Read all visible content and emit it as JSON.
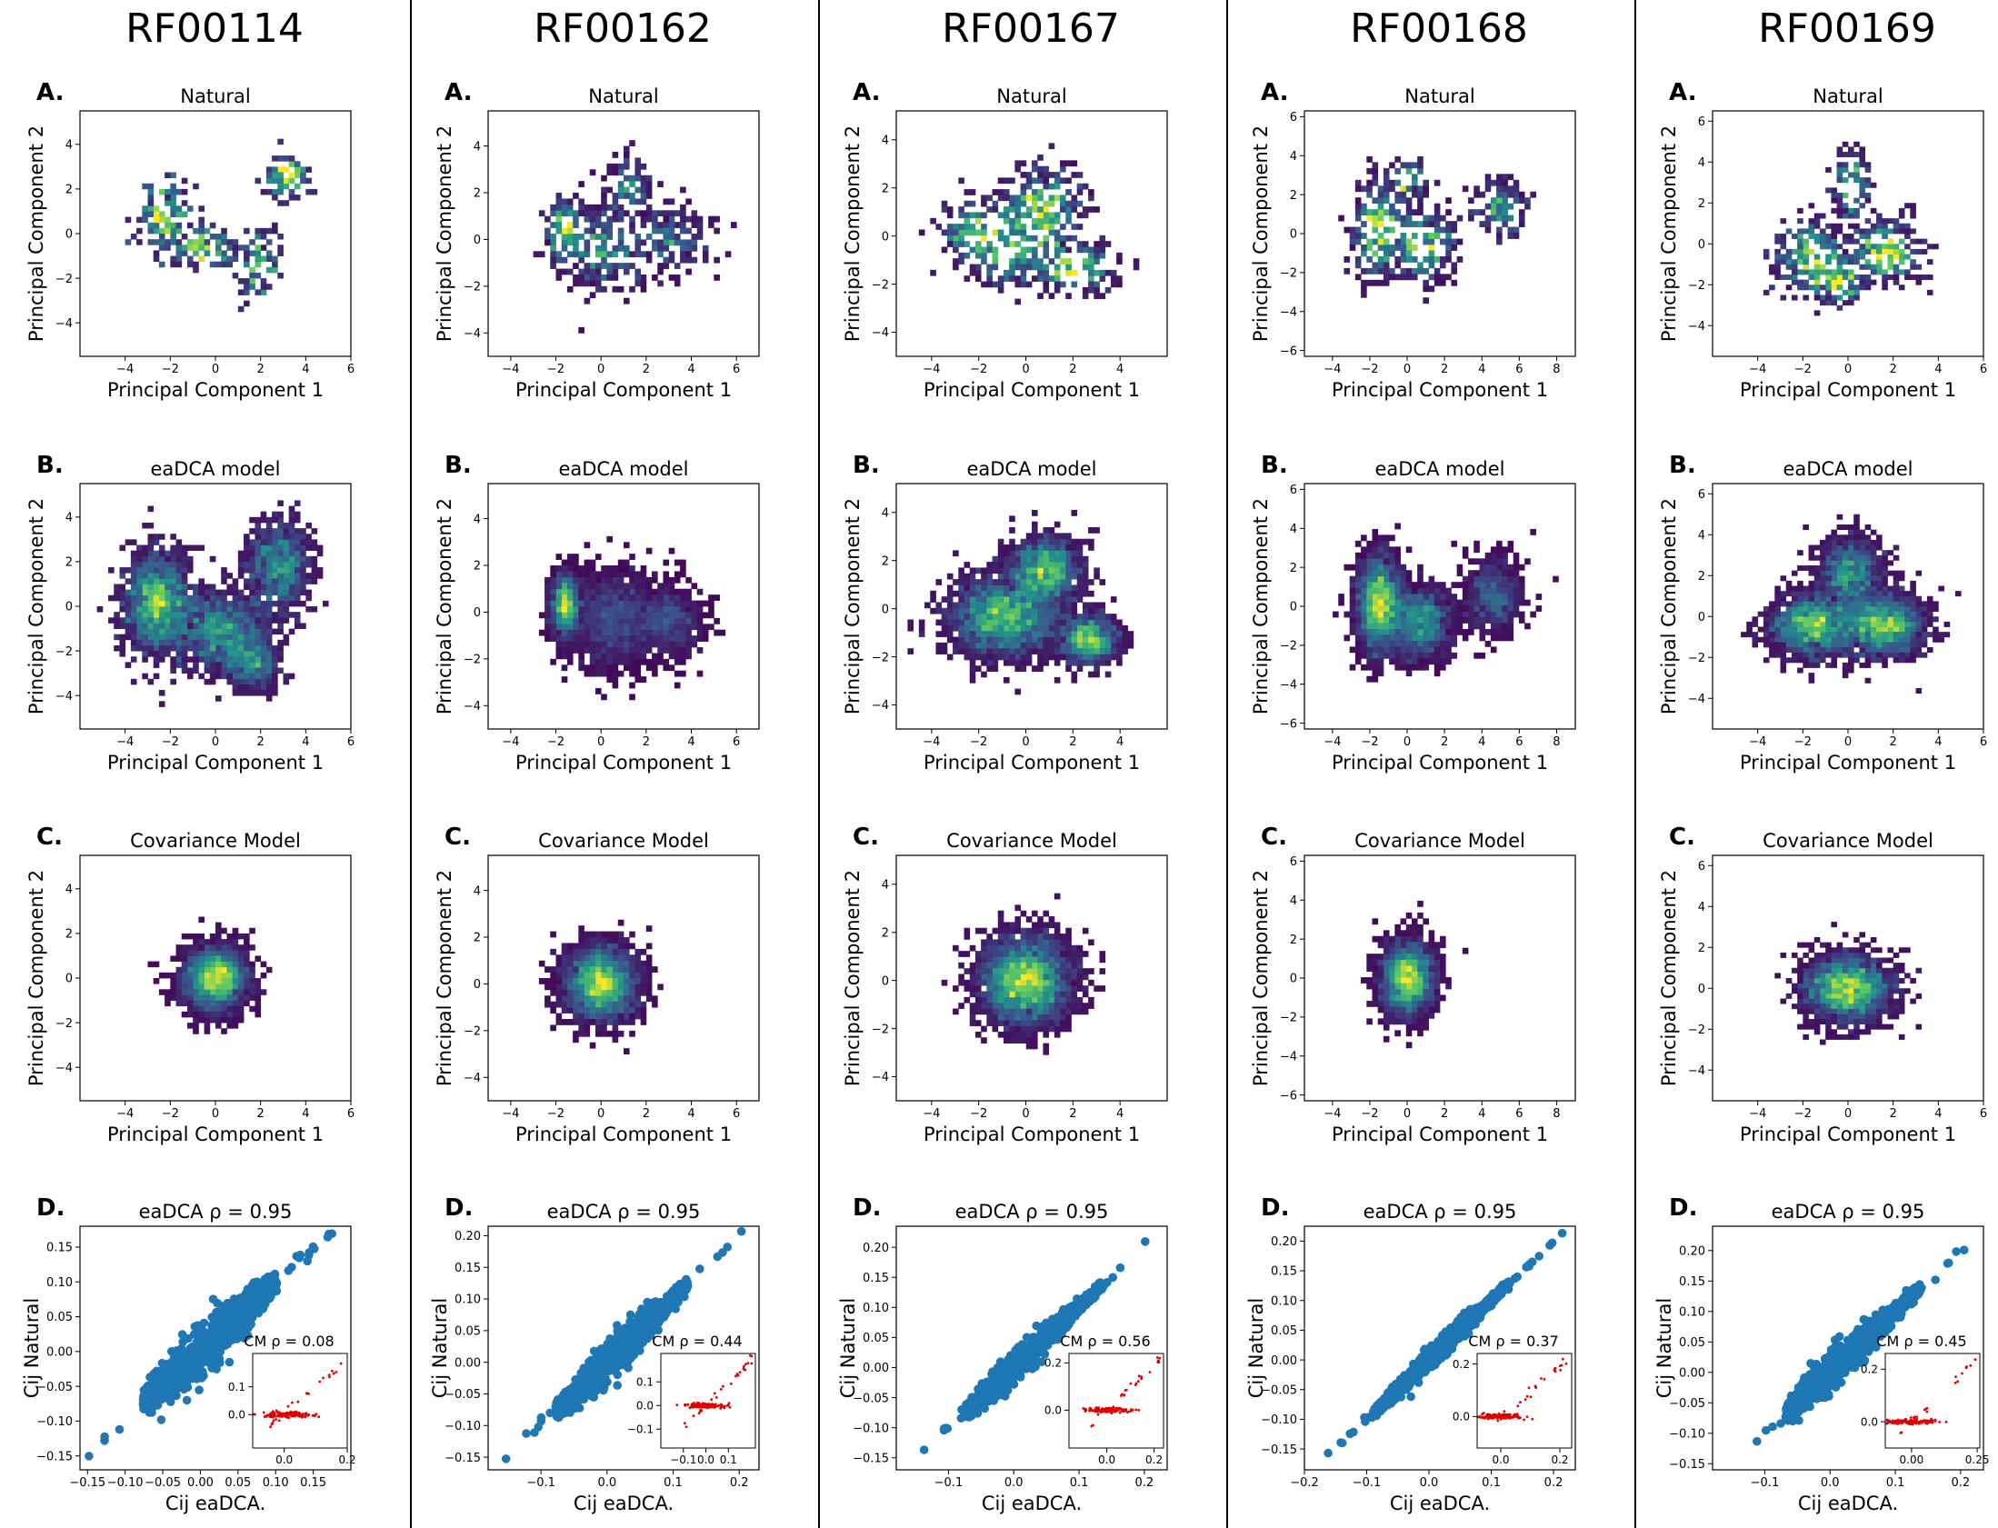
{
  "figure": {
    "columns": [
      {
        "family": "RF00114",
        "pc_xticks": [
          -4,
          -2,
          0,
          2,
          4,
          6
        ],
        "pc_yticks": [
          -4,
          -2,
          0,
          2,
          4
        ],
        "pc_xlim": [
          -6,
          6
        ],
        "pc_ylim": [
          -5.5,
          5.5
        ],
        "density": {
          "natural": {
            "seed": 11,
            "count": 95,
            "clusters": [
              [
                -2.3,
                0.9,
                0.7,
                1.0,
                0.35
              ],
              [
                -0.6,
                -0.6,
                0.9,
                0.6,
                0.25
              ],
              [
                1.9,
                -1.4,
                0.6,
                1.1,
                0.2
              ],
              [
                3.1,
                2.6,
                0.6,
                0.6,
                0.2
              ]
            ]
          },
          "eadca": {
            "seed": 12,
            "count": 360,
            "clusters": [
              [
                -2.6,
                0.2,
                0.9,
                1.5,
                0.45
              ],
              [
                0.1,
                -1.0,
                1.5,
                1.1,
                0.35
              ],
              [
                2.8,
                1.8,
                0.9,
                1.3,
                0.25
              ],
              [
                1.5,
                -2.5,
                0.8,
                0.8,
                0.15
              ]
            ]
          },
          "cm": {
            "seed": 13,
            "count": 260,
            "clusters": [
              [
                0.0,
                0.0,
                0.95,
                0.95,
                1.0
              ]
            ]
          }
        },
        "corr": {
          "seed": 14,
          "xlim": [
            -0.16,
            0.2
          ],
          "ylim": [
            -0.17,
            0.18
          ],
          "xticks": [
            -0.15,
            -0.1,
            -0.05,
            0.0,
            0.05,
            0.1,
            0.15
          ],
          "xtick_labels": [
            "−0.15",
            "−0.10",
            "−0.05",
            "0.00",
            "0.05",
            "0.10",
            "0.15"
          ],
          "yticks": [
            -0.15,
            -0.1,
            -0.05,
            0.0,
            0.05,
            0.1,
            0.15
          ],
          "ytick_labels": [
            "−0.15",
            "−0.10",
            "−0.05",
            "0.00",
            "0.05",
            "0.10",
            "0.15"
          ],
          "range": [
            -0.15,
            0.175
          ],
          "spread": 0.012,
          "inset_xlim": [
            -0.1,
            0.2
          ],
          "inset_ylim": [
            -0.12,
            0.22
          ],
          "inset_xticks": [
            0.0,
            0.2
          ],
          "inset_xtick_labels": [
            "0.0",
            "0.2"
          ],
          "inset_yticks": [
            0.0,
            0.1
          ],
          "inset_ytick_labels": [
            "0.0",
            "0.1"
          ]
        },
        "cm_rho": "CM ρ = 0.08"
      },
      {
        "family": "RF00162",
        "pc_xticks": [
          -4,
          -2,
          0,
          2,
          4,
          6
        ],
        "pc_yticks": [
          -4,
          -2,
          0,
          2,
          4
        ],
        "pc_xlim": [
          -5,
          7
        ],
        "pc_ylim": [
          -5,
          5.5
        ],
        "density": {
          "natural": {
            "seed": 21,
            "count": 230,
            "clusters": [
              [
                -1.6,
                0.3,
                0.5,
                0.8,
                0.3
              ],
              [
                0.2,
                -0.3,
                1.2,
                1.2,
                0.35
              ],
              [
                1.2,
                2.3,
                0.6,
                0.8,
                0.15
              ],
              [
                3.0,
                0.0,
                1.1,
                0.9,
                0.2
              ]
            ]
          },
          "eadca": {
            "seed": 22,
            "count": 340,
            "clusters": [
              [
                -1.6,
                0.3,
                0.4,
                0.9,
                0.4
              ],
              [
                0.5,
                -0.2,
                1.3,
                1.4,
                0.4
              ],
              [
                3.0,
                -0.4,
                1.0,
                1.0,
                0.2
              ]
            ]
          },
          "cm": {
            "seed": 23,
            "count": 280,
            "clusters": [
              [
                0.0,
                0.0,
                1.05,
                1.05,
                1.0
              ]
            ]
          }
        },
        "corr": {
          "seed": 24,
          "xlim": [
            -0.18,
            0.23
          ],
          "ylim": [
            -0.17,
            0.215
          ],
          "xticks": [
            -0.1,
            0.0,
            0.1,
            0.2
          ],
          "xtick_labels": [
            "−0.1",
            "0.0",
            "0.1",
            "0.2"
          ],
          "yticks": [
            -0.15,
            -0.1,
            -0.05,
            0.0,
            0.05,
            0.1,
            0.15,
            0.2
          ],
          "ytick_labels": [
            "−0.15",
            "−0.10",
            "−0.05",
            "0.00",
            "0.05",
            "0.10",
            "0.15",
            "0.20"
          ],
          "range": [
            -0.16,
            0.205
          ],
          "spread": 0.01,
          "inset_xlim": [
            -0.2,
            0.22
          ],
          "inset_ylim": [
            -0.18,
            0.22
          ],
          "inset_xticks": [
            -0.1,
            0.0,
            0.1
          ],
          "inset_xtick_labels": [
            "−0.1",
            "0.0",
            "0.1"
          ],
          "inset_yticks": [
            -0.1,
            0.0,
            0.1
          ],
          "inset_ytick_labels": [
            "−0.1",
            "0.0",
            "0.1"
          ]
        },
        "cm_rho": "CM ρ = 0.44"
      },
      {
        "family": "RF00167",
        "pc_xticks": [
          -4,
          -2,
          0,
          2,
          4
        ],
        "pc_yticks": [
          -4,
          -2,
          0,
          2,
          4
        ],
        "pc_xlim": [
          -5.5,
          6
        ],
        "pc_ylim": [
          -5,
          5.2
        ],
        "density": {
          "natural": {
            "seed": 31,
            "count": 330,
            "clusters": [
              [
                -0.6,
                -0.2,
                1.4,
                1.1,
                0.4
              ],
              [
                0.8,
                1.2,
                1.0,
                1.0,
                0.3
              ],
              [
                2.1,
                -1.3,
                1.0,
                0.6,
                0.2
              ],
              [
                -2.4,
                0.2,
                0.7,
                0.7,
                0.1
              ]
            ]
          },
          "eadca": {
            "seed": 32,
            "count": 420,
            "clusters": [
              [
                -0.9,
                -0.3,
                1.5,
                1.1,
                0.5
              ],
              [
                0.8,
                1.6,
                1.0,
                0.9,
                0.3
              ],
              [
                2.7,
                -1.3,
                0.8,
                0.7,
                0.2
              ]
            ]
          },
          "cm": {
            "seed": 33,
            "count": 300,
            "clusters": [
              [
                0.0,
                0.0,
                1.25,
                1.2,
                1.0
              ]
            ]
          }
        },
        "corr": {
          "seed": 34,
          "xlim": [
            -0.18,
            0.235
          ],
          "ylim": [
            -0.17,
            0.235
          ],
          "xticks": [
            -0.1,
            0.0,
            0.1,
            0.2
          ],
          "xtick_labels": [
            "−0.1",
            "0.0",
            "0.1",
            "0.2"
          ],
          "yticks": [
            -0.15,
            -0.1,
            -0.05,
            0.0,
            0.05,
            0.1,
            0.15,
            0.2
          ],
          "ytick_labels": [
            "−0.15",
            "−0.10",
            "−0.05",
            "0.00",
            "0.05",
            "0.10",
            "0.15",
            "0.20"
          ],
          "range": [
            -0.16,
            0.22
          ],
          "spread": 0.008,
          "inset_xlim": [
            -0.16,
            0.24
          ],
          "inset_ylim": [
            -0.16,
            0.24
          ],
          "inset_xticks": [
            0.0,
            0.2
          ],
          "inset_xtick_labels": [
            "0.0",
            "0.2"
          ],
          "inset_yticks": [
            0.0,
            0.2
          ],
          "inset_ytick_labels": [
            "0.0",
            "0.2"
          ]
        },
        "cm_rho": "CM ρ = 0.56"
      },
      {
        "family": "RF00168",
        "pc_xticks": [
          -4,
          -2,
          0,
          2,
          4,
          6,
          8
        ],
        "pc_yticks": [
          -6,
          -4,
          -2,
          0,
          2,
          4,
          6
        ],
        "pc_xlim": [
          -5.5,
          9
        ],
        "pc_ylim": [
          -6.3,
          6.3
        ],
        "density": {
          "natural": {
            "seed": 41,
            "count": 270,
            "clusters": [
              [
                -1.6,
                0.3,
                0.8,
                1.5,
                0.4
              ],
              [
                0.8,
                -0.6,
                1.0,
                1.1,
                0.35
              ],
              [
                5.0,
                1.3,
                0.8,
                0.9,
                0.15
              ],
              [
                0.0,
                2.8,
                0.6,
                0.7,
                0.1
              ]
            ]
          },
          "eadca": {
            "seed": 42,
            "count": 420,
            "clusters": [
              [
                -1.5,
                0.1,
                0.8,
                1.6,
                0.55
              ],
              [
                0.8,
                -0.8,
                1.1,
                1.2,
                0.3
              ],
              [
                4.6,
                0.5,
                1.0,
                1.3,
                0.15
              ]
            ]
          },
          "cm": {
            "seed": 43,
            "count": 240,
            "clusters": [
              [
                0.0,
                0.0,
                0.95,
                1.25,
                1.0
              ]
            ]
          }
        },
        "corr": {
          "seed": 44,
          "xlim": [
            -0.2,
            0.235
          ],
          "ylim": [
            -0.185,
            0.225
          ],
          "xticks": [
            -0.2,
            -0.1,
            0.0,
            0.1,
            0.2
          ],
          "xtick_labels": [
            "−0.2",
            "−0.1",
            "0.0",
            "0.1",
            "0.2"
          ],
          "yticks": [
            -0.15,
            -0.1,
            -0.05,
            0.0,
            0.05,
            0.1,
            0.15,
            0.2
          ],
          "ytick_labels": [
            "−0.15",
            "−0.10",
            "−0.05",
            "0.00",
            "0.05",
            "0.10",
            "0.15",
            "0.20"
          ],
          "range": [
            -0.18,
            0.22
          ],
          "spread": 0.006,
          "inset_xlim": [
            -0.08,
            0.24
          ],
          "inset_ylim": [
            -0.12,
            0.24
          ],
          "inset_xticks": [
            0.0,
            0.2
          ],
          "inset_xtick_labels": [
            "0.0",
            "0.2"
          ],
          "inset_yticks": [
            0.0,
            0.2
          ],
          "inset_ytick_labels": [
            "0.0",
            "0.2"
          ]
        },
        "cm_rho": "CM ρ = 0.37"
      },
      {
        "family": "RF00169",
        "pc_xticks": [
          -4,
          -2,
          0,
          2,
          4,
          6
        ],
        "pc_yticks": [
          -4,
          -2,
          0,
          2,
          4,
          6
        ],
        "pc_xlim": [
          -6,
          6
        ],
        "pc_ylim": [
          -5.5,
          6.5
        ],
        "density": {
          "natural": {
            "seed": 51,
            "count": 260,
            "clusters": [
              [
                -1.6,
                -0.7,
                1.0,
                1.0,
                0.35
              ],
              [
                1.6,
                -0.4,
                1.0,
                0.9,
                0.35
              ],
              [
                0.2,
                2.8,
                0.5,
                1.0,
                0.15
              ],
              [
                -0.4,
                -1.9,
                0.7,
                0.6,
                0.15
              ]
            ]
          },
          "eadca": {
            "seed": 52,
            "count": 420,
            "clusters": [
              [
                -1.5,
                -0.4,
                1.3,
                1.0,
                0.4
              ],
              [
                1.6,
                -0.4,
                1.2,
                1.0,
                0.4
              ],
              [
                0.1,
                2.2,
                0.9,
                1.1,
                0.2
              ]
            ]
          },
          "cm": {
            "seed": 53,
            "count": 260,
            "clusters": [
              [
                0.0,
                0.0,
                1.25,
                1.05,
                1.0
              ]
            ]
          }
        },
        "corr": {
          "seed": 54,
          "xlim": [
            -0.18,
            0.235
          ],
          "ylim": [
            -0.16,
            0.24
          ],
          "xticks": [
            -0.1,
            0.0,
            0.1,
            0.2
          ],
          "xtick_labels": [
            "−0.1",
            "0.0",
            "0.1",
            "0.2"
          ],
          "yticks": [
            -0.15,
            -0.1,
            -0.05,
            0.0,
            0.05,
            0.1,
            0.15,
            0.2
          ],
          "ytick_labels": [
            "−0.15",
            "−0.10",
            "−0.05",
            "0.00",
            "0.05",
            "0.10",
            "0.15",
            "0.20"
          ],
          "range": [
            -0.155,
            0.225
          ],
          "spread": 0.01,
          "inset_xlim": [
            -0.1,
            0.26
          ],
          "inset_ylim": [
            -0.1,
            0.26
          ],
          "inset_xticks": [
            0.0,
            0.25
          ],
          "inset_xtick_labels": [
            "0.00",
            "0.25"
          ],
          "inset_yticks": [
            0.0,
            0.2
          ],
          "inset_ytick_labels": [
            "0.0",
            "0.2"
          ]
        },
        "cm_rho": "CM ρ = 0.45"
      }
    ]
  },
  "chart_data": {
    "type": "heatmap",
    "description_rows": [
      "A. Natural",
      "B. eaDCA model",
      "C. Covariance Model",
      "D. eaDCA ρ = 0.95"
    ],
    "panel_letters": [
      "A.",
      "B.",
      "C.",
      "D."
    ],
    "row_titles": [
      "Natural",
      "eaDCA model",
      "Covariance Model",
      "eaDCA ρ = 0.95"
    ],
    "pc_xlabel": "Principal Component 1",
    "pc_ylabel": "Principal Component 2",
    "corr_xlabel": "Cij eaDCA.",
    "corr_ylabel": "Cij Natural",
    "colors": {
      "scatter": "#1f77b4",
      "inset": "#e00000",
      "viridis": [
        "#440154",
        "#3b528b",
        "#21918c",
        "#5ec962",
        "#fde725"
      ]
    }
  }
}
